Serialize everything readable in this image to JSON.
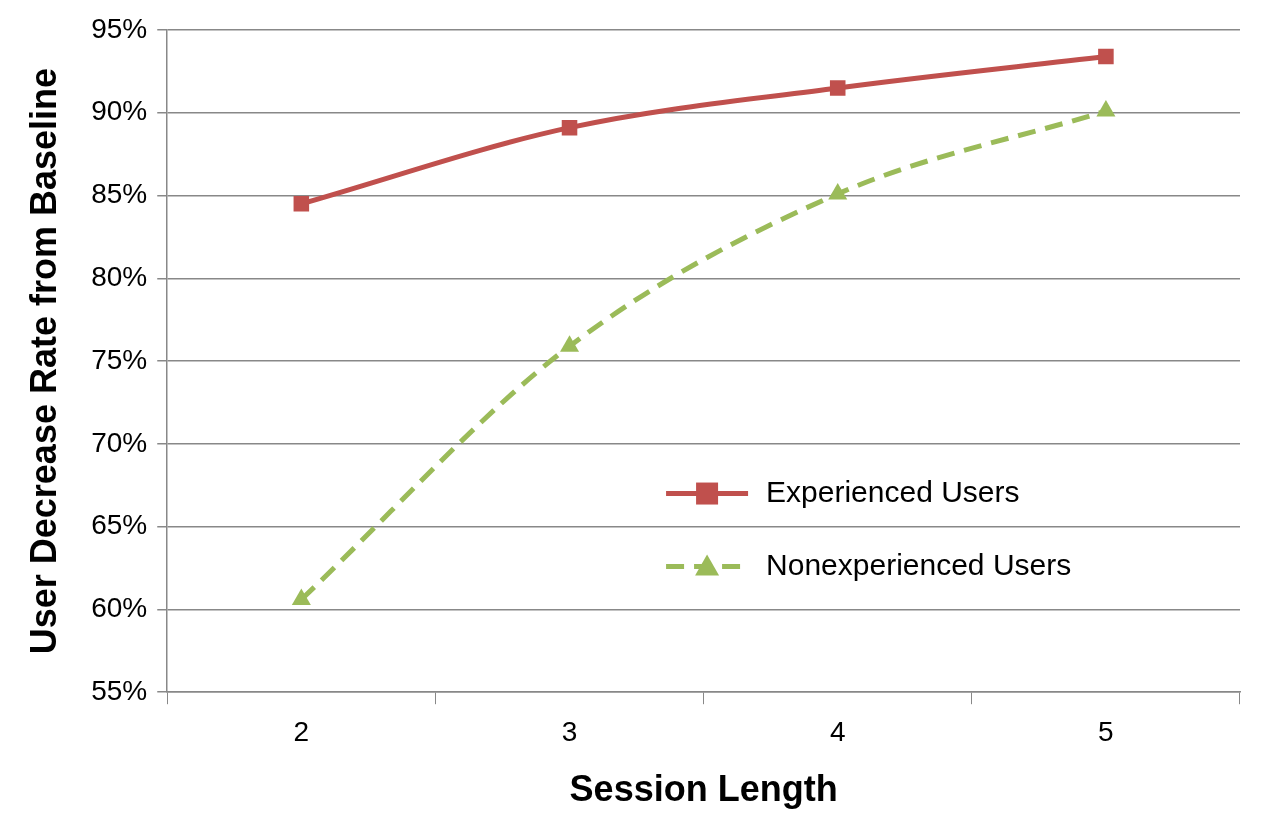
{
  "chart_data": {
    "type": "line",
    "xlabel": "Session Length",
    "ylabel": "User Decrease Rate from Baseline",
    "categories": [
      "2",
      "3",
      "4",
      "5"
    ],
    "series": [
      {
        "name": "Experienced Users",
        "color": "#c0504d",
        "values": [
          84.5,
          89.1,
          91.5,
          93.4
        ],
        "marker": "square",
        "line_style": "solid"
      },
      {
        "name": "Nonexperienced Users",
        "color": "#9bbb59",
        "values": [
          60.6,
          75.9,
          85.1,
          90.1
        ],
        "marker": "triangle",
        "line_style": "dashed"
      }
    ],
    "ylim": [
      55,
      95
    ],
    "yticks": [
      {
        "value": 55,
        "label": "55%"
      },
      {
        "value": 60,
        "label": "60%"
      },
      {
        "value": 65,
        "label": "65%"
      },
      {
        "value": 70,
        "label": "70%"
      },
      {
        "value": 75,
        "label": "75%"
      },
      {
        "value": 80,
        "label": "80%"
      },
      {
        "value": 85,
        "label": "85%"
      },
      {
        "value": 90,
        "label": "90%"
      },
      {
        "value": 95,
        "label": "95%"
      }
    ],
    "grid": "y",
    "legend": "right"
  }
}
